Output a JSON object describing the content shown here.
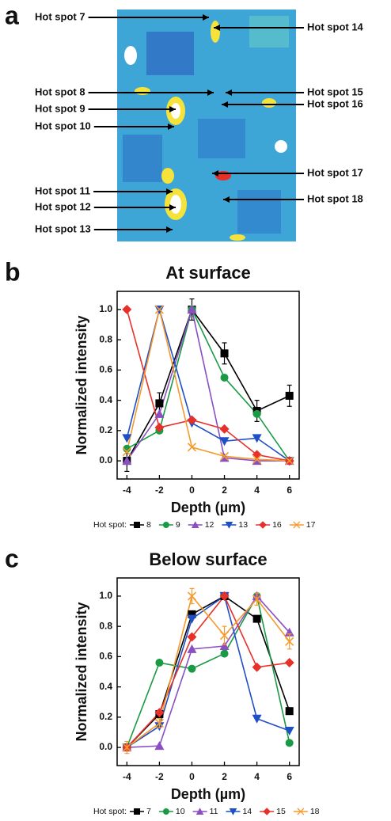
{
  "image_panel": {
    "panel": "a",
    "left_labels": [
      "Hot spot 7",
      "Hot spot 8",
      "Hot spot 9",
      "Hot spot 10",
      "Hot spot 11",
      "Hot spot 12",
      "Hot spot 13"
    ],
    "right_labels": [
      "Hot spot 14",
      "Hot spot 15",
      "Hot spot 16",
      "Hot spot 17",
      "Hot spot 18"
    ]
  },
  "chart_data": [
    {
      "type": "line",
      "panel": "b",
      "title": "At surface",
      "x_label": "Depth (µm)",
      "y_label": "Normalized intensity",
      "x": [
        -4,
        -2,
        0,
        2,
        4,
        6
      ],
      "xlim": [
        -4.6,
        6.6
      ],
      "xticks": [
        -4,
        -2,
        0,
        2,
        4,
        6
      ],
      "ylim": [
        -0.12,
        1.12
      ],
      "yticks": [
        {
          "value": 0,
          "label": "0.0"
        },
        0.2,
        0.4,
        0.6,
        0.8,
        {
          "value": 1,
          "label": "1.0"
        }
      ],
      "legend_title": "Hot spot:",
      "series": [
        {
          "name": "8",
          "color": "#000000",
          "marker": "square",
          "values": [
            0,
            0.38,
            1.0,
            0.71,
            0.33,
            0.43
          ],
          "errors": [
            0.07,
            0.07,
            0.07,
            0.07,
            0.07,
            0.07
          ]
        },
        {
          "name": "9",
          "color": "#1b9a45",
          "marker": "circle",
          "values": [
            0.08,
            0.2,
            1.0,
            0.55,
            0.31,
            0
          ]
        },
        {
          "name": "12",
          "color": "#8a4fc2",
          "marker": "triangle",
          "values": [
            0,
            0.31,
            1.0,
            0.02,
            0,
            0
          ]
        },
        {
          "name": "13",
          "color": "#1f4fc6",
          "marker": "triangle-down",
          "values": [
            0.15,
            1.0,
            0.25,
            0.13,
            0.15,
            0
          ]
        },
        {
          "name": "16",
          "color": "#e8302a",
          "marker": "diamond",
          "values": [
            1.0,
            0.22,
            0.27,
            0.21,
            0.04,
            0
          ]
        },
        {
          "name": "17",
          "color": "#f59a2c",
          "marker": "x",
          "values": [
            0.06,
            1.0,
            0.09,
            0.03,
            0.01,
            0
          ]
        }
      ]
    },
    {
      "type": "line",
      "panel": "c",
      "title": "Below surface",
      "x_label": "Depth (µm)",
      "y_label": "Normalized intensity",
      "x": [
        -4,
        -2,
        0,
        2,
        4,
        6
      ],
      "xlim": [
        -4.6,
        6.6
      ],
      "xticks": [
        -4,
        -2,
        0,
        2,
        4,
        6
      ],
      "ylim": [
        -0.12,
        1.12
      ],
      "yticks": [
        {
          "value": 0,
          "label": "0.0"
        },
        0.2,
        0.4,
        0.6,
        0.8,
        {
          "value": 1,
          "label": "1.0"
        }
      ],
      "legend_title": "Hot spot:",
      "series": [
        {
          "name": "7",
          "color": "#000000",
          "marker": "square",
          "values": [
            0,
            0.22,
            0.88,
            1.0,
            0.85,
            0.24
          ],
          "errors": [
            0.02,
            0.02,
            0.02,
            0.02,
            0.02,
            0.02
          ]
        },
        {
          "name": "10",
          "color": "#1b9a45",
          "marker": "circle",
          "values": [
            0,
            0.56,
            0.52,
            0.62,
            1.0,
            0.03
          ]
        },
        {
          "name": "11",
          "color": "#8a4fc2",
          "marker": "triangle",
          "values": [
            0,
            0.01,
            0.65,
            0.67,
            1.0,
            0.76
          ]
        },
        {
          "name": "14",
          "color": "#1f4fc6",
          "marker": "triangle-down",
          "values": [
            0,
            0.14,
            0.85,
            1.0,
            0.19,
            0.11
          ]
        },
        {
          "name": "15",
          "color": "#e8302a",
          "marker": "diamond",
          "values": [
            0,
            0.23,
            0.73,
            1.0,
            0.53,
            0.56
          ]
        },
        {
          "name": "18",
          "color": "#f59a2c",
          "marker": "x",
          "values": [
            0,
            0.16,
            1.0,
            0.74,
            0.98,
            0.7
          ],
          "errors": [
            0.04,
            0.03,
            0.05,
            0.06,
            0.04,
            0.05
          ]
        }
      ]
    }
  ]
}
